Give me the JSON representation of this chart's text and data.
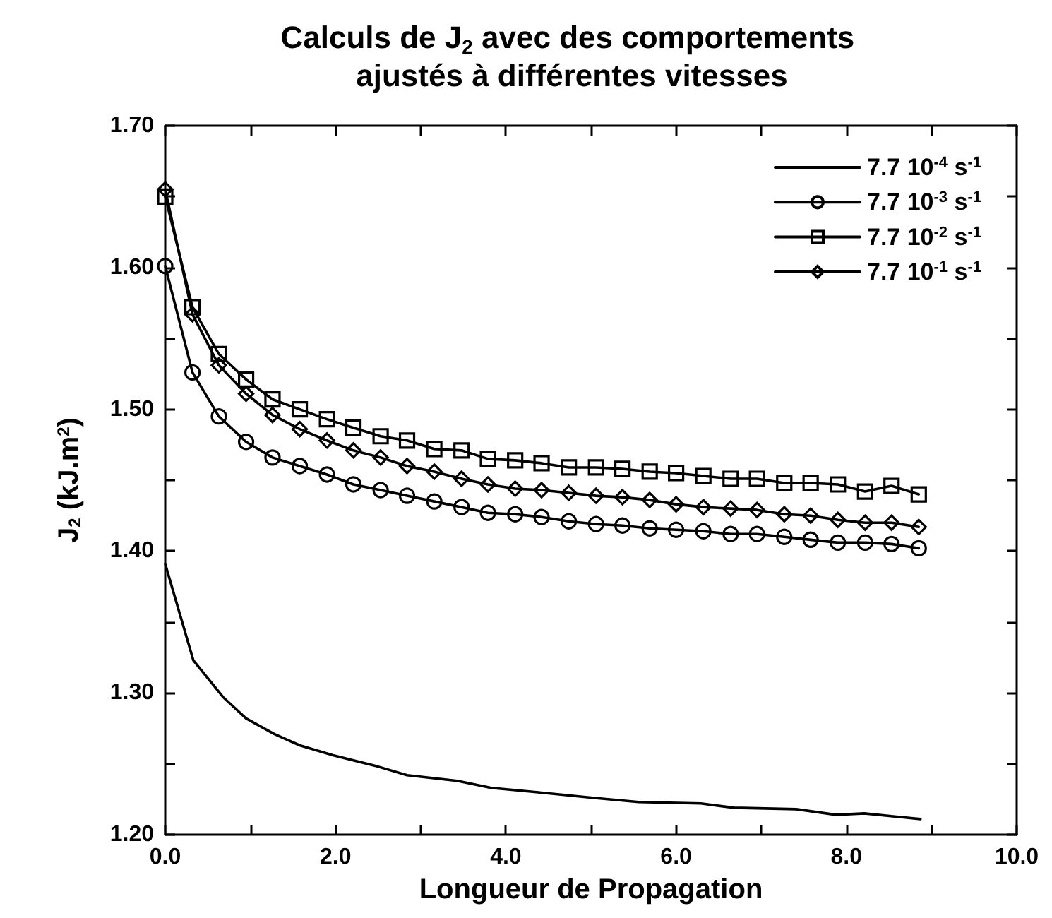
{
  "chart_data": {
    "type": "line",
    "title": "Calculs de J$_{2}$ avec des comportements ajustés à différentes vitesses",
    "xlabel": "Longueur de Propagation",
    "ylabel": "J$_{2}$ (kJ.m$^{2}$)",
    "xlim": [
      0,
      10
    ],
    "ylim": [
      1.2,
      1.7
    ],
    "xticks": [
      {
        "value": 0,
        "label": "0.0"
      },
      {
        "value": 1,
        "label": null
      },
      {
        "value": 2,
        "label": "2.0"
      },
      {
        "value": 3,
        "label": null
      },
      {
        "value": 4,
        "label": "4.0"
      },
      {
        "value": 5,
        "label": null
      },
      {
        "value": 6,
        "label": "6.0"
      },
      {
        "value": 7,
        "label": null
      },
      {
        "value": 8,
        "label": "8.0"
      },
      {
        "value": 9,
        "label": null
      },
      {
        "value": 10,
        "label": "10.0"
      }
    ],
    "yticks": [
      {
        "value": 1.2,
        "label": "1.20"
      },
      {
        "value": 1.25,
        "label": null
      },
      {
        "value": 1.3,
        "label": "1.30"
      },
      {
        "value": 1.35,
        "label": null
      },
      {
        "value": 1.4,
        "label": "1.40"
      },
      {
        "value": 1.45,
        "label": null
      },
      {
        "value": 1.5,
        "label": "1.50"
      },
      {
        "value": 1.55,
        "label": null
      },
      {
        "value": 1.6,
        "label": "1.60"
      },
      {
        "value": 1.65,
        "label": null
      },
      {
        "value": 1.7,
        "label": "1.70"
      }
    ],
    "grid": false,
    "legend": "top right",
    "line_style": "solid",
    "series": [
      {
        "name": "7.7 10$^{-4}$ s$^{-1}$",
        "color": "#000000",
        "marker": "none",
        "x": [
          0,
          0.33,
          0.68,
          0.95,
          1.28,
          1.58,
          1.97,
          2.5,
          2.84,
          3.43,
          3.83,
          4.36,
          5.02,
          5.56,
          6.29,
          6.68,
          7.41,
          7.88,
          8.21,
          8.87
        ],
        "values": [
          1.391,
          1.323,
          1.297,
          1.282,
          1.271,
          1.263,
          1.256,
          1.248,
          1.242,
          1.238,
          1.233,
          1.23,
          1.226,
          1.223,
          1.222,
          1.219,
          1.218,
          1.214,
          1.215,
          1.211
        ]
      },
      {
        "name": "7.7 10$^{-3}$ s$^{-1}$",
        "color": "#000000",
        "marker": "circle",
        "x": [
          0,
          0.32,
          0.63,
          0.95,
          1.26,
          1.58,
          1.9,
          2.21,
          2.53,
          2.84,
          3.16,
          3.48,
          3.79,
          4.11,
          4.42,
          4.74,
          5.06,
          5.37,
          5.69,
          6.0,
          6.32,
          6.64,
          6.95,
          7.27,
          7.58,
          7.9,
          8.22,
          8.53,
          8.85
        ],
        "values": [
          1.601,
          1.526,
          1.495,
          1.477,
          1.466,
          1.46,
          1.454,
          1.447,
          1.443,
          1.439,
          1.435,
          1.431,
          1.427,
          1.426,
          1.424,
          1.421,
          1.419,
          1.418,
          1.416,
          1.415,
          1.414,
          1.412,
          1.412,
          1.41,
          1.408,
          1.406,
          1.406,
          1.405,
          1.402
        ]
      },
      {
        "name": "7.7 10$^{-2}$ s$^{-1}$",
        "color": "#000000",
        "marker": "square",
        "x": [
          0,
          0.32,
          0.63,
          0.95,
          1.26,
          1.58,
          1.9,
          2.21,
          2.53,
          2.84,
          3.16,
          3.48,
          3.79,
          4.11,
          4.42,
          4.74,
          5.06,
          5.37,
          5.69,
          6.0,
          6.32,
          6.64,
          6.95,
          7.27,
          7.58,
          7.9,
          8.22,
          8.53,
          8.85
        ],
        "values": [
          1.65,
          1.572,
          1.539,
          1.521,
          1.507,
          1.5,
          1.493,
          1.487,
          1.481,
          1.478,
          1.472,
          1.471,
          1.465,
          1.464,
          1.462,
          1.459,
          1.459,
          1.458,
          1.456,
          1.455,
          1.453,
          1.451,
          1.451,
          1.448,
          1.448,
          1.447,
          1.442,
          1.446,
          1.44
        ]
      },
      {
        "name": "7.7 10$^{-1}$ s$^{-1}$",
        "color": "#000000",
        "marker": "diamond",
        "x": [
          0,
          0.32,
          0.63,
          0.95,
          1.26,
          1.58,
          1.9,
          2.21,
          2.53,
          2.84,
          3.16,
          3.48,
          3.79,
          4.11,
          4.42,
          4.74,
          5.06,
          5.37,
          5.69,
          6.0,
          6.32,
          6.64,
          6.95,
          7.27,
          7.58,
          7.9,
          8.22,
          8.53,
          8.85
        ],
        "values": [
          1.655,
          1.567,
          1.531,
          1.511,
          1.496,
          1.486,
          1.478,
          1.471,
          1.466,
          1.46,
          1.456,
          1.451,
          1.447,
          1.444,
          1.443,
          1.441,
          1.439,
          1.438,
          1.436,
          1.433,
          1.431,
          1.43,
          1.429,
          1.426,
          1.425,
          1.422,
          1.42,
          1.42,
          1.417
        ]
      }
    ]
  }
}
